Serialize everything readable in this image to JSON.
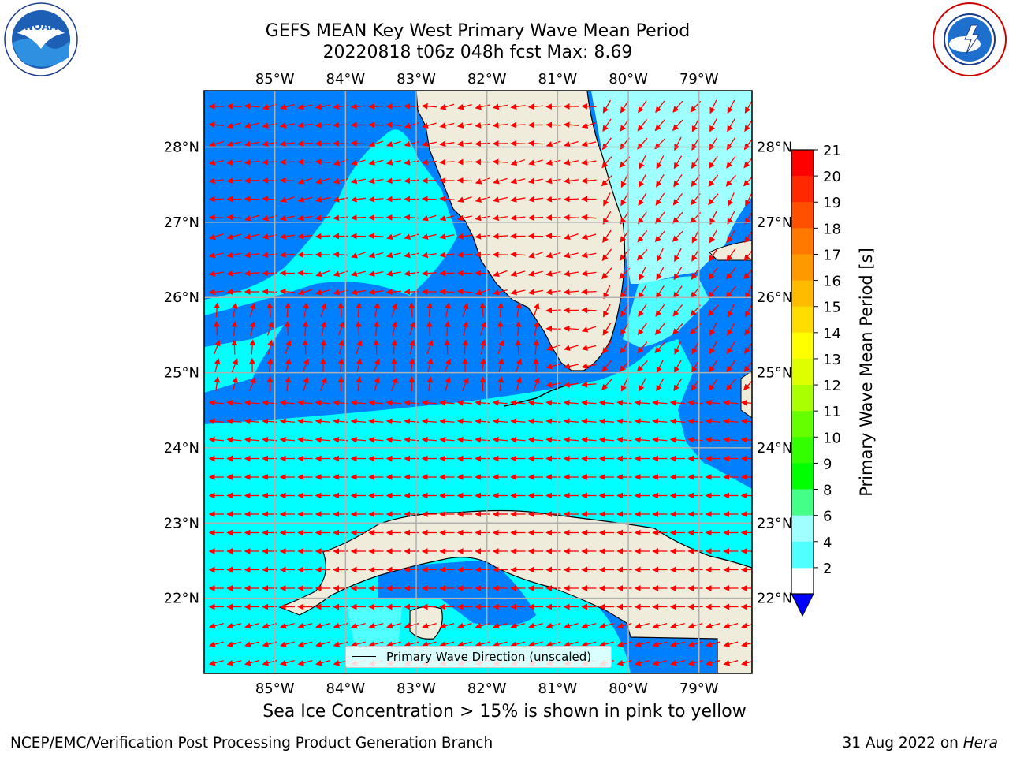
{
  "title": {
    "line1": "GEFS MEAN Key West Primary Wave Mean Period",
    "line2": "20220818 t06z 048h fcst    Max: 8.69"
  },
  "logos": {
    "left": {
      "text": "NOAA",
      "ring_text": "NATIONAL OCEANIC AND ATMOSPHERIC ADMINISTRATION · U.S. DEPARTMENT OF COMMERCE",
      "icon": "noaa-logo"
    },
    "right": {
      "ring_text": "NATIONAL WEATHER SERVICE",
      "icon": "nws-logo"
    }
  },
  "map": {
    "lon_ticks": [
      "85°W",
      "84°W",
      "83°W",
      "82°W",
      "81°W",
      "80°W",
      "79°W"
    ],
    "lat_ticks": [
      "28°N",
      "27°N",
      "26°N",
      "25°N",
      "24°N",
      "23°N",
      "22°N"
    ],
    "lon_values": [
      -85,
      -84,
      -83,
      -82,
      -81,
      -80,
      -79
    ],
    "lat_values": [
      28,
      27,
      26,
      25,
      24,
      23,
      22
    ],
    "extent": {
      "lon_min": -86.0,
      "lon_max": -78.25,
      "lat_min": 21.0,
      "lat_max": 28.75
    },
    "colors": {
      "ocean_low": "#0080ff",
      "ocean_mid": "#00ffff",
      "ocean_high": "#a0ffff",
      "land": "#efecdb",
      "arrow": "#ff0000",
      "grid": "#b0b0b0"
    },
    "legend_label": "Primary Wave Direction (unscaled)"
  },
  "colorbar": {
    "title": "Primary Wave Mean Period [s]",
    "labels": [
      "21",
      "20",
      "19",
      "18",
      "17",
      "16",
      "15",
      "14",
      "13",
      "12",
      "11",
      "10",
      "9",
      "8",
      "6",
      "4",
      "2"
    ],
    "colors": [
      "#ff0000",
      "#ff2800",
      "#ff5000",
      "#ff7800",
      "#ff9900",
      "#ffbb00",
      "#ffdd00",
      "#ffff00",
      "#ddff00",
      "#aaff00",
      "#66ff00",
      "#33ff00",
      "#00ff00",
      "#44ff88",
      "#a0ffff",
      "#50ffff",
      "#00ffff",
      "#0080ff"
    ],
    "under_color": "#0000ff"
  },
  "note": "Sea Ice Concentration > 15% is shown in pink to yellow",
  "footer": {
    "left": "NCEP/EMC/Verification Post Processing Product Generation Branch",
    "right_date": "31 Aug 2022 on ",
    "right_host": "Hera"
  }
}
